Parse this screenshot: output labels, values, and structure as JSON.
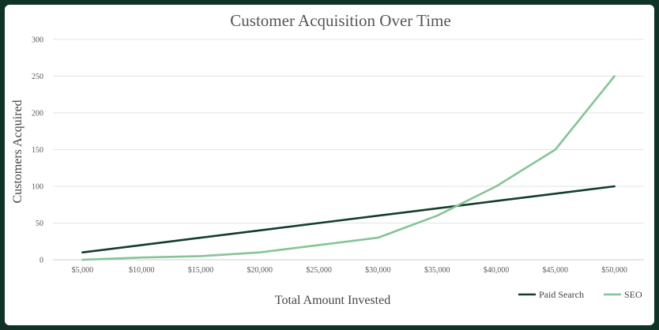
{
  "chart_data": {
    "type": "line",
    "title": "Customer Acquisition Over Time",
    "xlabel": "Total Amount Invested",
    "ylabel": "Customers Acquired",
    "categories": [
      "$5,000",
      "$10,000",
      "$15,000",
      "$20,000",
      "$25,000",
      "$30,000",
      "$35,000",
      "$40,000",
      "$45,000",
      "$50,000"
    ],
    "y_ticks": [
      0,
      50,
      100,
      150,
      200,
      250,
      300
    ],
    "ylim": [
      0,
      300
    ],
    "grid": true,
    "legend_position": "bottom-right",
    "series": [
      {
        "name": "Paid Search",
        "color": "#133d2d",
        "values": [
          10,
          20,
          30,
          40,
          50,
          60,
          70,
          80,
          90,
          100
        ]
      },
      {
        "name": "SEO",
        "color": "#86c497",
        "values": [
          0,
          3,
          5,
          10,
          20,
          30,
          60,
          100,
          150,
          250
        ]
      }
    ]
  }
}
